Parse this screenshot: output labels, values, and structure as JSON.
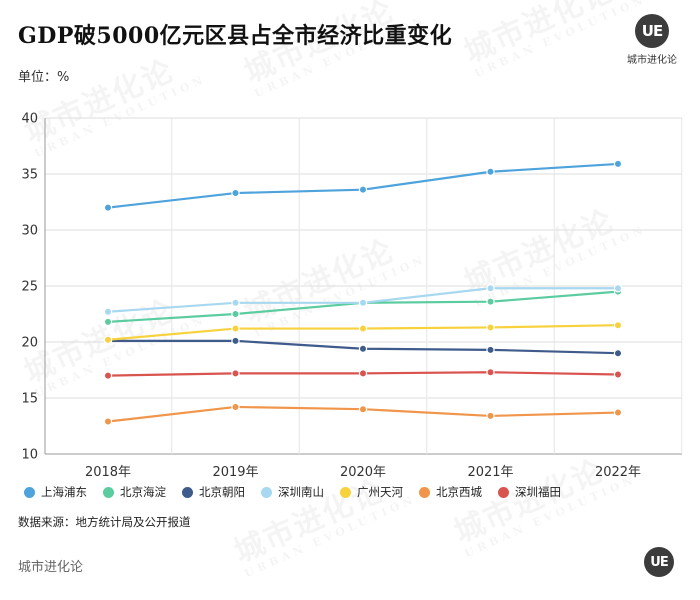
{
  "header": {
    "title": "GDP破5000亿元区县占全市经济比重变化",
    "unit": "单位：%",
    "brand_badge": "UE",
    "brand_name": "城市进化论"
  },
  "source": "数据来源：地方统计局及公开报道",
  "footer": {
    "brand_name": "城市进化论",
    "badge": "UE"
  },
  "watermark": {
    "cn": "城市进化论",
    "en": "URBAN EVOLUTION"
  },
  "chart_data": {
    "type": "line",
    "title": "GDP破5000亿元区县占全市经济比重变化",
    "ylabel": "单位：%",
    "categories": [
      "2018年",
      "2019年",
      "2020年",
      "2021年",
      "2022年"
    ],
    "ylim": [
      10,
      40
    ],
    "yticks": [
      10,
      15,
      20,
      25,
      30,
      35,
      40
    ],
    "grid": true,
    "legend_position": "bottom",
    "series": [
      {
        "name": "上海浦东",
        "color": "#4ea3dc",
        "values": [
          32.0,
          33.3,
          33.6,
          35.2,
          35.9
        ]
      },
      {
        "name": "北京海淀",
        "color": "#5bcca0",
        "values": [
          21.8,
          22.5,
          23.5,
          23.6,
          24.5
        ]
      },
      {
        "name": "北京朝阳",
        "color": "#3f5b8c",
        "values": [
          20.1,
          20.1,
          19.4,
          19.3,
          19.0
        ]
      },
      {
        "name": "深圳南山",
        "color": "#a8d8f0",
        "values": [
          22.7,
          23.5,
          23.5,
          24.8,
          24.8
        ]
      },
      {
        "name": "广州天河",
        "color": "#f7d23d",
        "values": [
          20.2,
          21.2,
          21.2,
          21.3,
          21.5
        ]
      },
      {
        "name": "北京西城",
        "color": "#f0954a",
        "values": [
          12.9,
          14.2,
          14.0,
          13.4,
          13.7
        ]
      },
      {
        "name": "深圳福田",
        "color": "#d9534f",
        "values": [
          17.0,
          17.2,
          17.2,
          17.3,
          17.1
        ]
      }
    ]
  }
}
